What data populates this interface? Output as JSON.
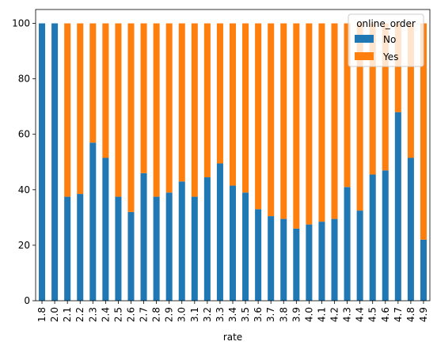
{
  "chart_data": {
    "type": "bar",
    "stacked": true,
    "categories": [
      "1.8",
      "2.0",
      "2.1",
      "2.2",
      "2.3",
      "2.4",
      "2.5",
      "2.6",
      "2.7",
      "2.8",
      "2.9",
      "3.0",
      "3.1",
      "3.2",
      "3.3",
      "3.4",
      "3.5",
      "3.6",
      "3.7",
      "3.8",
      "3.9",
      "4.0",
      "4.1",
      "4.2",
      "4.3",
      "4.4",
      "4.5",
      "4.6",
      "4.7",
      "4.8",
      "4.9"
    ],
    "series": [
      {
        "name": "No",
        "color": "#1f77b4",
        "values": [
          100,
          100,
          37.5,
          38.5,
          57,
          51.5,
          37.5,
          32,
          46,
          37.5,
          39,
          43,
          37.5,
          44.5,
          49.5,
          41.5,
          39,
          33,
          30.5,
          29.5,
          26,
          27.5,
          28.5,
          29.5,
          41,
          32.5,
          45.5,
          47,
          68,
          51.5,
          22
        ]
      },
      {
        "name": "Yes",
        "color": "#ff7f0e",
        "values": [
          0,
          0,
          62.5,
          61.5,
          43,
          48.5,
          62.5,
          68,
          54,
          62.5,
          61,
          57,
          62.5,
          55.5,
          50.5,
          58.5,
          61,
          67,
          69.5,
          70.5,
          74,
          72.5,
          71.5,
          70.5,
          59,
          67.5,
          54.5,
          53,
          32,
          48.5,
          78
        ]
      }
    ],
    "xlabel": "rate",
    "ylabel": "",
    "ylim": [
      0,
      105
    ],
    "yticks": [
      0,
      20,
      40,
      60,
      80,
      100
    ],
    "legend": {
      "title": "online_order",
      "placement": "top-right"
    },
    "grid": false
  }
}
